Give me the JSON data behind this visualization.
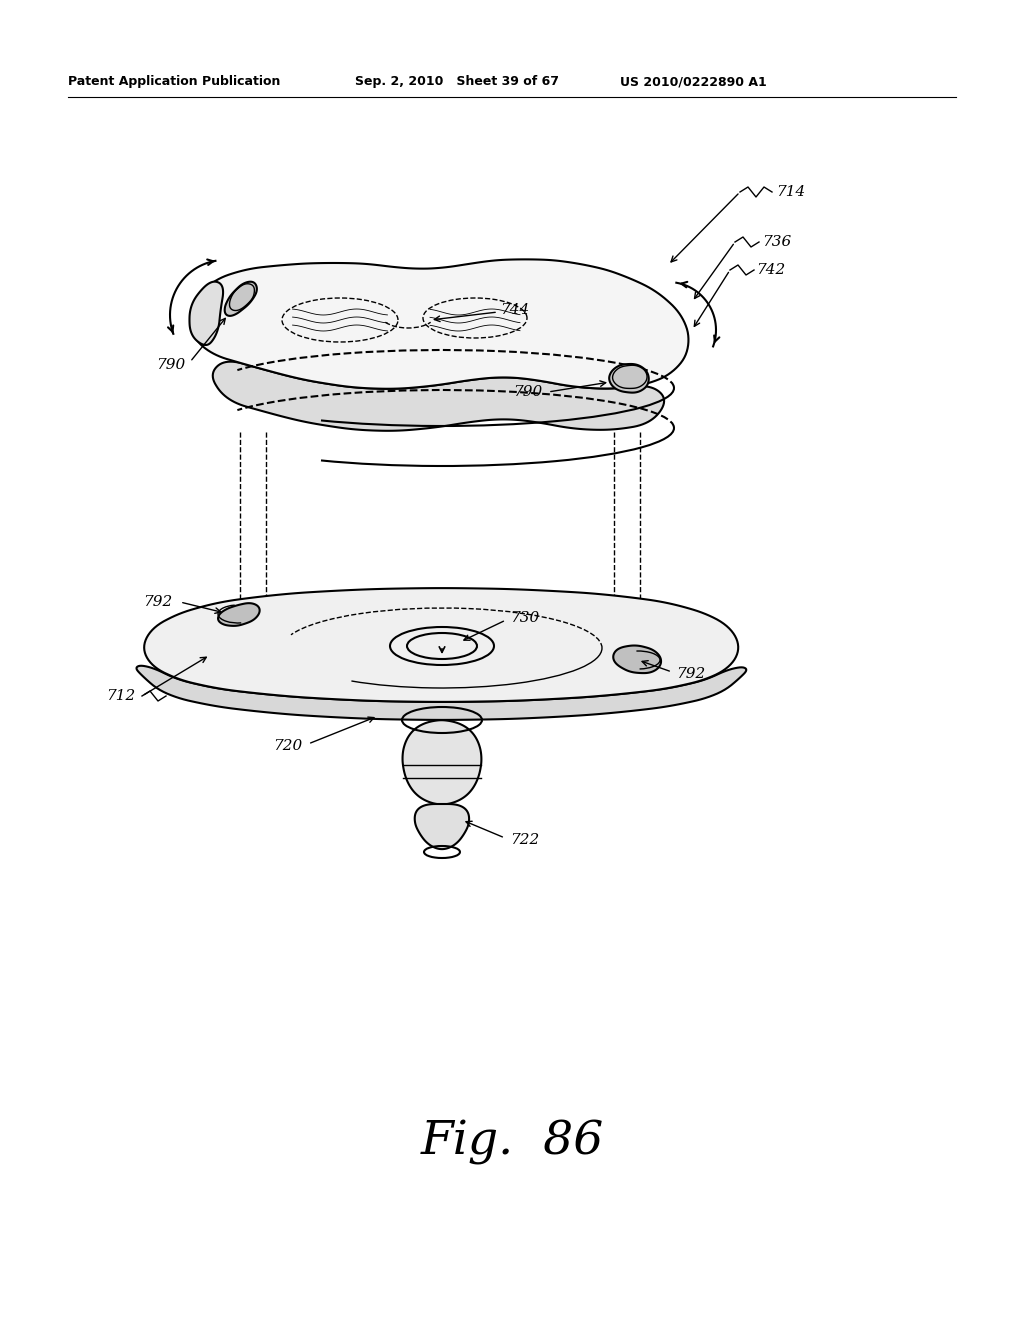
{
  "header_left": "Patent Application Publication",
  "header_mid": "Sep. 2, 2010   Sheet 39 of 67",
  "header_right": "US 2010/0222890 A1",
  "figure_label": "Fig.  86",
  "bg_color": "#ffffff",
  "line_color": "#000000",
  "lw_main": 1.5,
  "lw_thin": 1.0,
  "ref_fontsize": 11,
  "header_fontsize": 9,
  "fig_fontsize": 34
}
